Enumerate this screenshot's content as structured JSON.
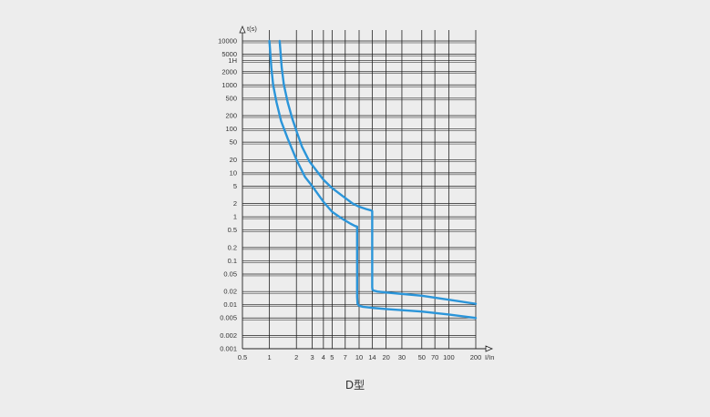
{
  "chart_data": {
    "type": "line",
    "title": "",
    "xlabel": "I/In",
    "ylabel": "t(s)",
    "xscale": "log",
    "yscale": "log",
    "xlim": [
      0.5,
      200
    ],
    "ylim": [
      0.001,
      10000
    ],
    "x_ticks": [
      {
        "value": 0.5,
        "label": "0.5"
      },
      {
        "value": 1,
        "label": "1"
      },
      {
        "value": 2,
        "label": "2"
      },
      {
        "value": 3,
        "label": "3"
      },
      {
        "value": 4,
        "label": "4"
      },
      {
        "value": 5,
        "label": "5"
      },
      {
        "value": 7,
        "label": "7"
      },
      {
        "value": 10,
        "label": "10"
      },
      {
        "value": 14,
        "label": "14"
      },
      {
        "value": 20,
        "label": "20"
      },
      {
        "value": 30,
        "label": "30"
      },
      {
        "value": 50,
        "label": "50"
      },
      {
        "value": 70,
        "label": "70"
      },
      {
        "value": 100,
        "label": "100"
      },
      {
        "value": 200,
        "label": "200"
      }
    ],
    "y_ticks": [
      {
        "value": 10000,
        "label": "10000"
      },
      {
        "value": 5000,
        "label": "5000"
      },
      {
        "value": 3600,
        "label": "1H"
      },
      {
        "value": 2000,
        "label": "2000"
      },
      {
        "value": 1000,
        "label": "1000"
      },
      {
        "value": 500,
        "label": "500"
      },
      {
        "value": 200,
        "label": "200"
      },
      {
        "value": 100,
        "label": "100"
      },
      {
        "value": 50,
        "label": "50"
      },
      {
        "value": 20,
        "label": "20"
      },
      {
        "value": 10,
        "label": "10"
      },
      {
        "value": 5,
        "label": "5"
      },
      {
        "value": 2,
        "label": "2"
      },
      {
        "value": 1,
        "label": "1"
      },
      {
        "value": 0.5,
        "label": "0.5"
      },
      {
        "value": 0.2,
        "label": "0.2"
      },
      {
        "value": 0.1,
        "label": "0.1"
      },
      {
        "value": 0.05,
        "label": "0.05"
      },
      {
        "value": 0.02,
        "label": "0.02"
      },
      {
        "value": 0.01,
        "label": "0.01"
      },
      {
        "value": 0.005,
        "label": "0.005"
      },
      {
        "value": 0.002,
        "label": "0.002"
      },
      {
        "value": 0.001,
        "label": "0.001"
      }
    ],
    "grid": true,
    "color": "#2b95d9",
    "series": [
      {
        "x": [
          1.0,
          1.05,
          1.1,
          1.2,
          1.35,
          1.6,
          2.0,
          2.5,
          3.0,
          4.0,
          5.0,
          6.5,
          8.0,
          9.0,
          9.5,
          9.5,
          9.6,
          10.0,
          11,
          14,
          20,
          50,
          100,
          200
        ],
        "y": [
          10000,
          2500,
          1000,
          400,
          150,
          60,
          20,
          8,
          5,
          2.2,
          1.3,
          0.9,
          0.7,
          0.62,
          0.6,
          0.015,
          0.0105,
          0.0095,
          0.009,
          0.0085,
          0.008,
          0.007,
          0.006,
          0.005
        ]
      },
      {
        "x": [
          1.3,
          1.37,
          1.45,
          1.6,
          1.8,
          2.0,
          2.3,
          2.8,
          3.5,
          4.0,
          5.0,
          6.5,
          8.5,
          10.0,
          12.0,
          13.6,
          14.0,
          14.0,
          14.1,
          14.5,
          16,
          20,
          50,
          100,
          200
        ],
        "y": [
          10000,
          2500,
          1000,
          400,
          170,
          90,
          40,
          18,
          10,
          7,
          4.5,
          3.0,
          2.0,
          1.7,
          1.5,
          1.4,
          1.35,
          0.025,
          0.022,
          0.021,
          0.02,
          0.019,
          0.016,
          0.013,
          0.0105
        ]
      }
    ],
    "annotations": [
      "D型"
    ]
  }
}
